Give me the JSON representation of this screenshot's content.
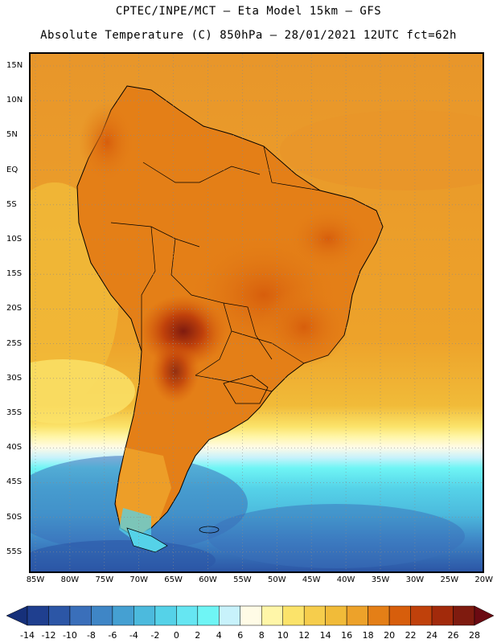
{
  "title_line1": "CPTEC/INPE/MCT –  Eta Model 15km – GFS",
  "title_line2": "Absolute Temperature (C) 850hPa – 28/01/2021 12UTC fct=62h",
  "lat_labels": [
    "15N",
    "10N",
    "5N",
    "EQ",
    "5S",
    "10S",
    "15S",
    "20S",
    "25S",
    "30S",
    "35S",
    "40S",
    "45S",
    "50S",
    "55S"
  ],
  "lon_labels": [
    "85W",
    "80W",
    "75W",
    "70W",
    "65W",
    "60W",
    "55W",
    "50W",
    "45W",
    "40W",
    "35W",
    "30W",
    "25W",
    "20W"
  ],
  "colorbar": {
    "labels": [
      "-14",
      "-12",
      "-10",
      "-8",
      "-6",
      "-4",
      "-2",
      "0",
      "2",
      "4",
      "6",
      "8",
      "10",
      "12",
      "14",
      "16",
      "18",
      "20",
      "22",
      "24",
      "26",
      "28"
    ],
    "colors": [
      "#1f3f8f",
      "#2c56a6",
      "#3a6fba",
      "#3f86c6",
      "#45a0d2",
      "#4cbadd",
      "#55d2e8",
      "#66e6f2",
      "#6ff5f5",
      "#c8f2fb",
      "#fffbe6",
      "#fff6a8",
      "#fbe36a",
      "#f6cd4c",
      "#f1bb39",
      "#eda22a",
      "#e47f17",
      "#d75e0c",
      "#c0410b",
      "#a22a0b",
      "#7f1b0f"
    ],
    "low_arrow_color": "#16307a",
    "high_arrow_color": "#6b0a12"
  },
  "map_colors": {
    "ocean_warm": "#eda22a",
    "ocean_mid": "#f1bb39",
    "land_hot": "#d75e0c",
    "land_very_hot": "#a22a0b",
    "coastline": "#000000",
    "gridline": "#8a8a8a"
  }
}
